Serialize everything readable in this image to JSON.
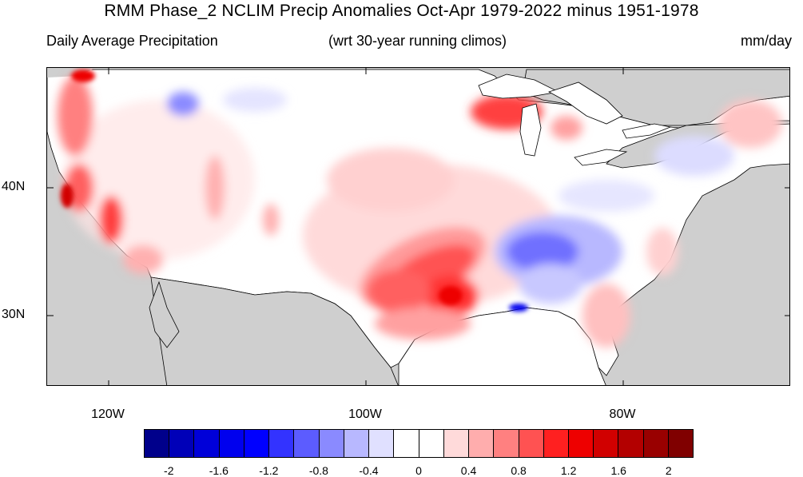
{
  "title": "RMM Phase_2 NCLIM Precip Anomalies Oct-Apr 1979-2022 minus 1951-1978",
  "subtitle_left": "Daily Average Precipitation",
  "subtitle_center": "(wrt 30-year running climos)",
  "subtitle_right": "mm/day",
  "lat_labels": [
    "40N",
    "30N"
  ],
  "lon_labels": [
    "120W",
    "100W",
    "80W"
  ],
  "colorbar": {
    "colors": [
      "#00008b",
      "#0000b8",
      "#0000d9",
      "#0000ee",
      "#0000ff",
      "#3333ff",
      "#5c5cff",
      "#8a8aff",
      "#b8b8ff",
      "#e0e0ff",
      "#ffffff",
      "#ffffff",
      "#ffdada",
      "#ffadad",
      "#ff8080",
      "#ff5252",
      "#ff2020",
      "#ee0000",
      "#d10000",
      "#b30000",
      "#990000",
      "#800000"
    ],
    "tick_labels": [
      "-2",
      "-1.6",
      "-1.2",
      "-0.8",
      "-0.4",
      "0",
      "0.4",
      "0.8",
      "1.2",
      "1.6",
      "2"
    ]
  },
  "colors": {
    "land_missing": "#cfcfcf",
    "coastline": "#000000"
  }
}
